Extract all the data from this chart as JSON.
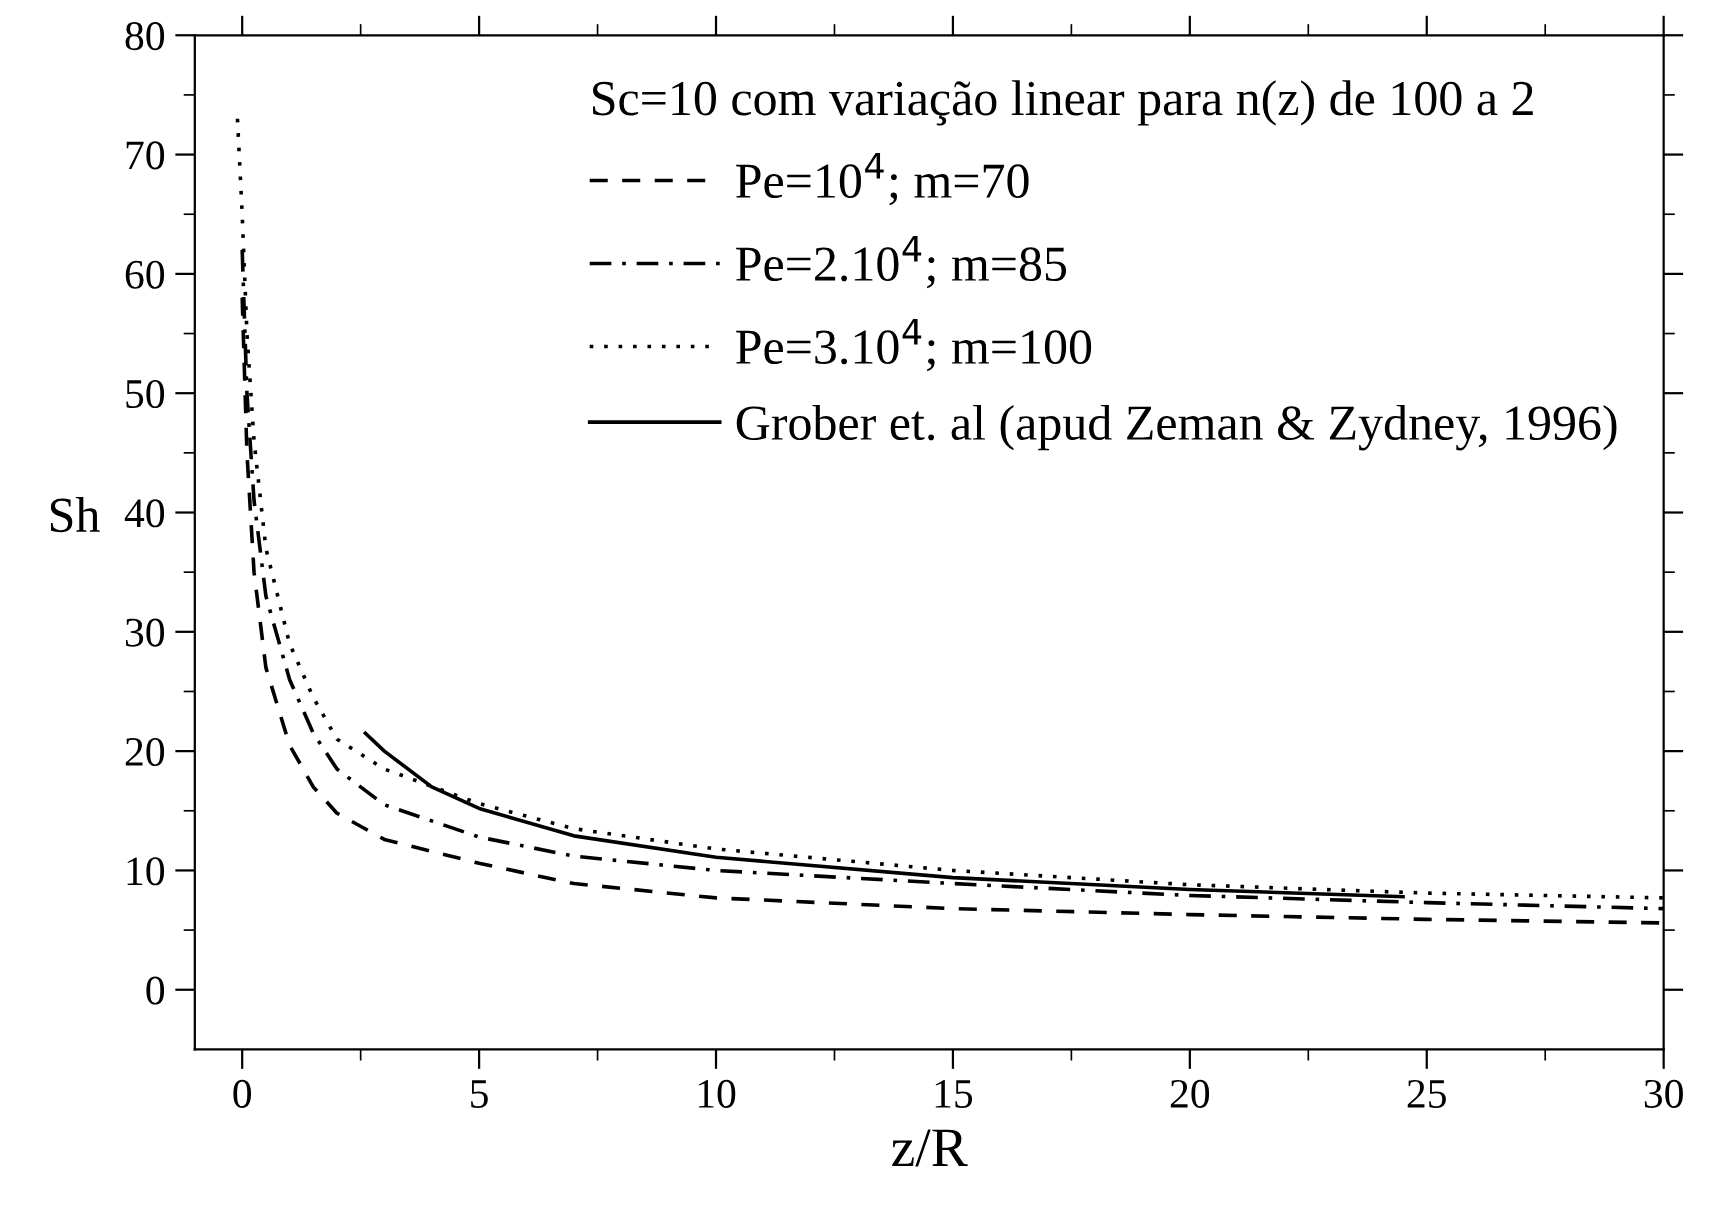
{
  "chart_data": {
    "type": "line",
    "xlabel": "z/R",
    "ylabel": "Sh",
    "legend_title": "Sc=10 com variação linear para n(z) de 100 a 2",
    "legend": "top right",
    "grid": false,
    "marker": "none",
    "xlim": [
      -1,
      30
    ],
    "ylim": [
      -5,
      80
    ],
    "xticks": [
      0,
      5,
      10,
      15,
      20,
      25,
      30
    ],
    "yticks": [
      0,
      10,
      20,
      30,
      40,
      50,
      60,
      70,
      80
    ],
    "series": [
      {
        "name": "Pe=10$^{4}$; m=70",
        "color": "#000000",
        "line_style": "dashed",
        "x": [
          0,
          0.1,
          0.25,
          0.5,
          1,
          1.5,
          2,
          3,
          5,
          7,
          10,
          15,
          20,
          25,
          30
        ],
        "values": [
          58,
          45,
          35,
          27,
          20.5,
          17,
          14.8,
          12.6,
          10.6,
          8.9,
          7.7,
          6.8,
          6.3,
          5.9,
          5.6
        ]
      },
      {
        "name": "Pe=2.10$^{4}$; m=85",
        "color": "#000000",
        "line_style": "dashdot",
        "x": [
          0,
          0.1,
          0.25,
          0.5,
          1,
          1.5,
          2,
          3,
          5,
          7,
          10,
          15,
          20,
          25,
          30
        ],
        "values": [
          62,
          50,
          41,
          33,
          26,
          21.5,
          18.5,
          15.5,
          12.8,
          11.2,
          10,
          8.9,
          7.9,
          7.3,
          6.8
        ]
      },
      {
        "name": "Pe=3.10$^{4}$; m=100",
        "color": "#000000",
        "line_style": "dotted",
        "x": [
          -0.1,
          0,
          0.1,
          0.25,
          0.5,
          1,
          1.5,
          2,
          3,
          5,
          7,
          10,
          15,
          20,
          25,
          30
        ],
        "values": [
          73,
          65,
          55,
          46,
          37,
          29,
          24.5,
          21,
          18.5,
          15.6,
          13.5,
          11.8,
          10,
          8.8,
          8.1,
          7.7
        ]
      },
      {
        "name": "Grober et. al (apud Zeman & Zydney, 1996)",
        "color": "#000000",
        "line_style": "solid",
        "x": [
          2.6,
          3,
          4,
          5,
          7,
          10,
          15,
          20,
          24.5
        ],
        "values": [
          21.5,
          20,
          17,
          15.2,
          12.9,
          11.1,
          9.4,
          8.4,
          7.8
        ]
      }
    ]
  }
}
